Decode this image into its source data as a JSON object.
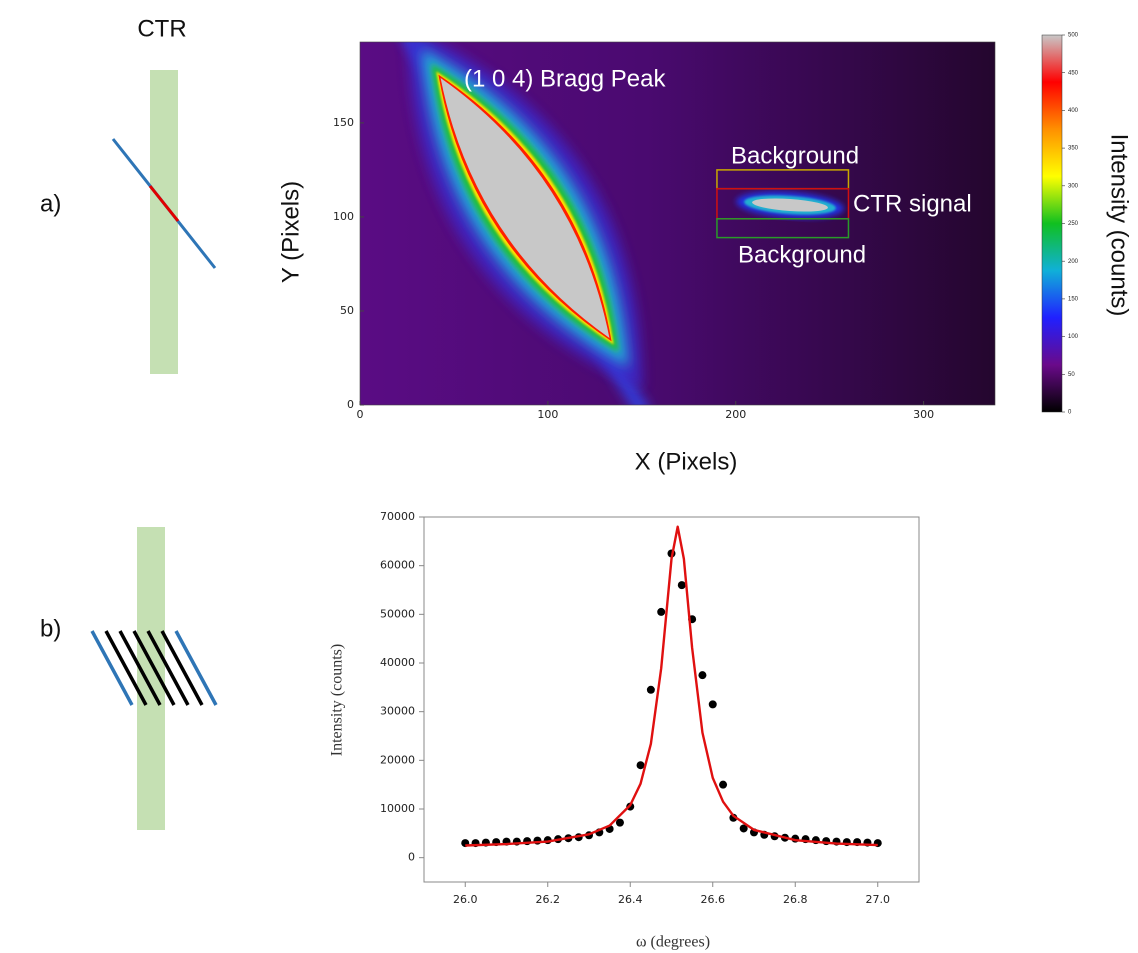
{
  "labels": {
    "ctr": "CTR",
    "panel_a": "a)",
    "panel_b": "b)"
  },
  "chart_data": [
    {
      "type": "heatmap",
      "xlabel": "X (Pixels)",
      "ylabel": "Y (Pixels)",
      "colorbar_label": "Intensity (counts)",
      "xlim": [
        0,
        338
      ],
      "ylim": [
        0,
        193
      ],
      "xticks": [
        0,
        100,
        200,
        300
      ],
      "yticks": [
        0,
        50,
        100,
        150
      ],
      "clim": [
        0,
        500
      ],
      "cticks": [
        0,
        50,
        100,
        150,
        200,
        250,
        300,
        350,
        400,
        450,
        500
      ],
      "colormap": [
        "#000000",
        "#6a0a8a",
        "#2020ff",
        "#10b0d8",
        "#10c020",
        "#ffff00",
        "#ff9000",
        "#ff0000",
        "#c8c8c8"
      ],
      "annotations": [
        "(1 0 4) Bragg Peak"
      ],
      "regions": [
        {
          "label": "Background",
          "color": "#c8a800",
          "x": [
            190,
            260
          ],
          "y": [
            115,
            125
          ]
        },
        {
          "label": "CTR signal",
          "color": "#d01010",
          "x": [
            190,
            260
          ],
          "y": [
            99,
            115
          ]
        },
        {
          "label": "Background",
          "color": "#2a9a2a",
          "x": [
            190,
            260
          ],
          "y": [
            89,
            99
          ]
        }
      ]
    },
    {
      "type": "scatter",
      "xlabel": "ω (degrees)",
      "ylabel": "Intensity (counts)",
      "xlim": [
        25.9,
        27.1
      ],
      "ylim": [
        -5000,
        70000
      ],
      "xticks": [
        {
          "value": 26,
          "label": "26.0"
        },
        {
          "value": 26.2,
          "label": "26.2"
        },
        {
          "value": 26.4,
          "label": "26.4"
        },
        {
          "value": 26.6,
          "label": "26.6"
        },
        {
          "value": 26.8,
          "label": "26.8"
        },
        {
          "value": 27,
          "label": "27.0"
        }
      ],
      "yticks": [
        0,
        10000,
        20000,
        30000,
        40000,
        50000,
        60000,
        70000
      ],
      "series": [
        {
          "type": "scatter",
          "color": "#000000",
          "x": [
            26.0,
            26.025,
            26.05,
            26.075,
            26.1,
            26.125,
            26.15,
            26.175,
            26.2,
            26.225,
            26.25,
            26.275,
            26.3,
            26.325,
            26.35,
            26.375,
            26.4,
            26.425,
            26.45,
            26.475,
            26.5,
            26.525,
            26.55,
            26.575,
            26.6,
            26.625,
            26.65,
            26.675,
            26.7,
            26.725,
            26.75,
            26.775,
            26.8,
            26.825,
            26.85,
            26.875,
            26.9,
            26.925,
            26.95,
            26.975,
            27.0
          ],
          "values": [
            3000,
            3000,
            3100,
            3200,
            3300,
            3300,
            3400,
            3500,
            3600,
            3800,
            4000,
            4200,
            4600,
            5200,
            5900,
            7200,
            10500,
            19000,
            34500,
            50500,
            62500,
            56000,
            49000,
            37500,
            31500,
            15000,
            8200,
            6000,
            5200,
            4700,
            4400,
            4100,
            3900,
            3800,
            3600,
            3400,
            3300,
            3200,
            3200,
            3100,
            3000
          ]
        },
        {
          "type": "line",
          "color": "#e01010",
          "x": [
            26.0,
            26.1,
            26.2,
            26.3,
            26.35,
            26.4,
            26.425,
            26.45,
            26.475,
            26.49,
            26.5,
            26.515,
            26.53,
            26.55,
            26.575,
            26.6,
            26.625,
            26.65,
            26.7,
            26.8,
            26.9,
            27.0
          ],
          "values": [
            2500,
            2800,
            3300,
            4800,
            6600,
            10800,
            15200,
            23400,
            38900,
            52400,
            61400,
            68000,
            61400,
            43100,
            25700,
            16400,
            11500,
            8600,
            5700,
            3600,
            2900,
            2600
          ]
        }
      ]
    }
  ]
}
